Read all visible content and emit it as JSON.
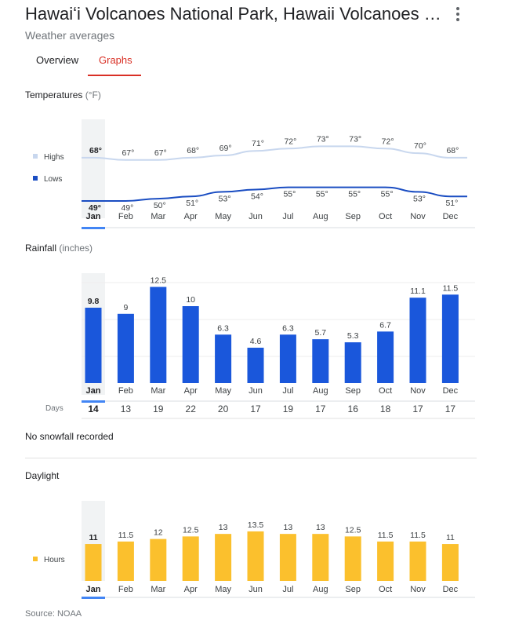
{
  "header": {
    "title": "Hawaiʻi Volcanoes National Park, Hawaii Volcanoes N…",
    "subtitle": "Weather averages",
    "more_icon": "more-vert-icon"
  },
  "tabs": [
    {
      "label": "Overview",
      "active": false
    },
    {
      "label": "Graphs",
      "active": true
    }
  ],
  "temperatures": {
    "label": "Temperatures",
    "unit": "(°F)"
  },
  "rainfall": {
    "label": "Rainfall",
    "unit": "(inches)"
  },
  "days_label": "Days",
  "snow_text": "No snowfall recorded",
  "daylight": {
    "label": "Daylight"
  },
  "source": "Source: NOAA",
  "selected_month_index": 0,
  "colors": {
    "accent": "#d93025",
    "highs": "#c8d7ee",
    "lows": "#1a4dc2",
    "rain": "#1a57db",
    "daylight": "#fbc02d",
    "selected": "#4285f4"
  },
  "chart_data": [
    {
      "type": "line",
      "title": "Temperatures (°F)",
      "categories": [
        "Jan",
        "Feb",
        "Mar",
        "Apr",
        "May",
        "Jun",
        "Jul",
        "Aug",
        "Sep",
        "Oct",
        "Nov",
        "Dec"
      ],
      "series": [
        {
          "name": "Highs",
          "values": [
            68,
            67,
            67,
            68,
            69,
            71,
            72,
            73,
            73,
            72,
            70,
            68
          ],
          "labels": [
            "68°",
            "67°",
            "67°",
            "68°",
            "69°",
            "71°",
            "72°",
            "73°",
            "73°",
            "72°",
            "70°",
            "68°"
          ]
        },
        {
          "name": "Lows",
          "values": [
            49,
            49,
            50,
            51,
            53,
            54,
            55,
            55,
            55,
            55,
            53,
            51
          ],
          "labels": [
            "49°",
            "49°",
            "50°",
            "51°",
            "53°",
            "54°",
            "55°",
            "55°",
            "55°",
            "55°",
            "53°",
            "51°"
          ]
        }
      ],
      "legend": "left"
    },
    {
      "type": "bar",
      "title": "Rainfall (inches)",
      "categories": [
        "Jan",
        "Feb",
        "Mar",
        "Apr",
        "May",
        "Jun",
        "Jul",
        "Aug",
        "Sep",
        "Oct",
        "Nov",
        "Dec"
      ],
      "values": [
        9.8,
        9,
        12.5,
        10,
        6.3,
        4.6,
        6.3,
        5.7,
        5.3,
        6.7,
        11.1,
        11.5
      ],
      "labels": [
        "9.8",
        "9",
        "12.5",
        "10",
        "6.3",
        "4.6",
        "6.3",
        "5.7",
        "5.3",
        "6.7",
        "11.1",
        "11.5"
      ],
      "days": [
        "14",
        "13",
        "19",
        "22",
        "20",
        "17",
        "19",
        "17",
        "16",
        "18",
        "17",
        "17"
      ],
      "ylim": [
        0,
        14
      ]
    },
    {
      "type": "bar",
      "title": "Daylight",
      "categories": [
        "Jan",
        "Feb",
        "Mar",
        "Apr",
        "May",
        "Jun",
        "Jul",
        "Aug",
        "Sep",
        "Oct",
        "Nov",
        "Dec"
      ],
      "series": [
        {
          "name": "Hours",
          "values": [
            11,
            11.5,
            12,
            12.5,
            13,
            13.5,
            13,
            13,
            12.5,
            11.5,
            11.5,
            11
          ]
        }
      ],
      "labels": [
        "11",
        "11.5",
        "12",
        "12.5",
        "13",
        "13.5",
        "13",
        "13",
        "12.5",
        "11.5",
        "11.5",
        "11"
      ],
      "ylim": [
        0,
        14
      ],
      "legend": "left"
    }
  ]
}
